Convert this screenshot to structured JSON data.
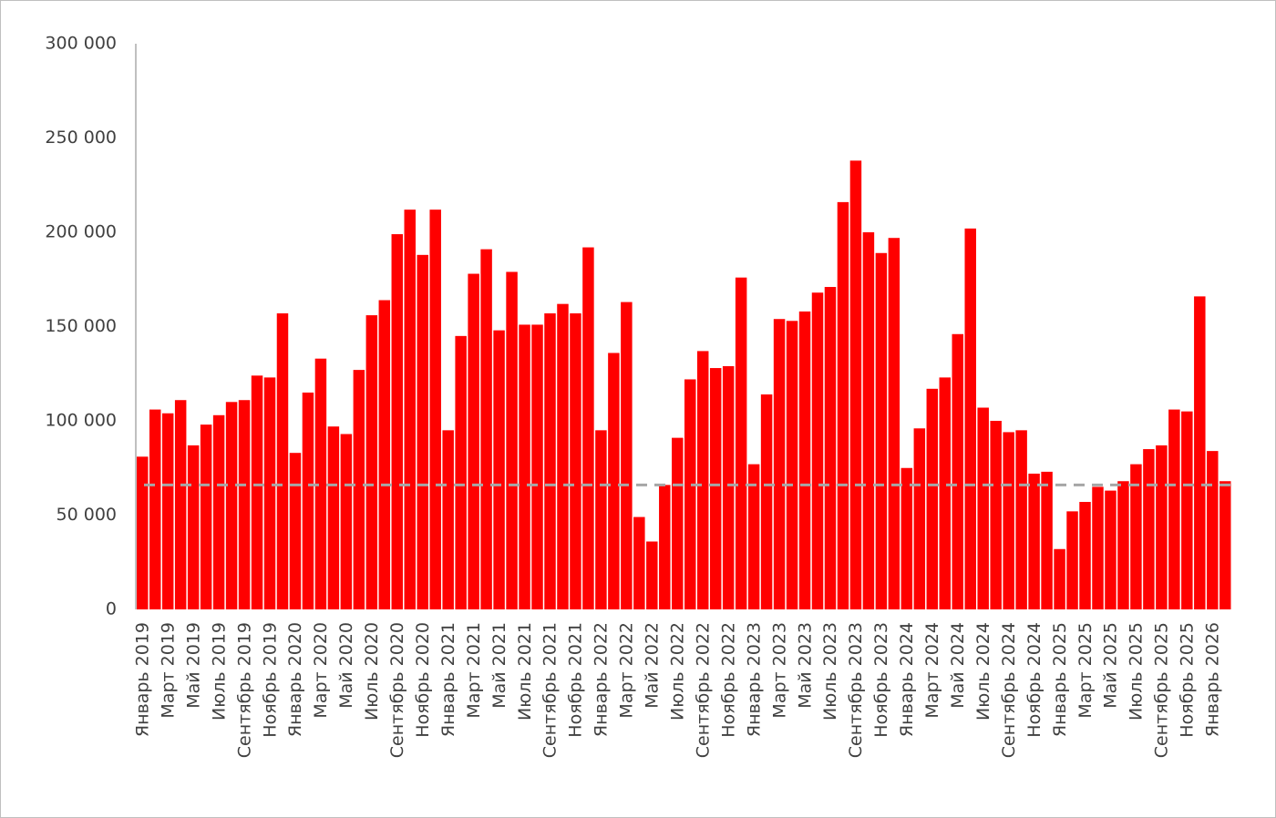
{
  "chart_data": {
    "type": "bar",
    "color": "#ff0000",
    "categories": [
      "Январь 2019",
      null,
      "Март 2019",
      null,
      "Май 2019",
      null,
      "Июль 2019",
      null,
      "Сентябрь 2019",
      null,
      "Ноябрь 2019",
      null,
      "Январь 2020",
      null,
      "Март 2020",
      null,
      "Май 2020",
      null,
      "Июль 2020",
      null,
      "Сентябрь 2020",
      null,
      "Ноябрь 2020",
      null,
      "Январь 2021",
      null,
      "Март 2021",
      null,
      "Май 2021",
      null,
      "Июль 2021",
      null,
      "Сентябрь 2021",
      null,
      "Ноябрь 2021",
      null,
      "Январь 2022",
      null,
      "Март 2022",
      null,
      "Май 2022",
      null,
      "Июль 2022",
      null,
      "Сентябрь 2022",
      null,
      "Ноябрь 2022",
      null,
      "Январь 2023",
      null,
      "Март 2023",
      null,
      "Май 2023",
      null,
      "Июль 2023",
      null,
      "Сентябрь 2023",
      null,
      "Ноябрь 2023",
      null,
      "Январь 2024",
      null,
      "Март 2024",
      null,
      "Май 2024",
      null,
      "Июль 2024",
      null,
      "Сентябрь 2024",
      null,
      "Ноябрь 2024",
      null,
      "Январь 2025",
      null,
      "Март 2025",
      null,
      "Май 2025",
      null,
      "Июль 2025",
      null,
      "Сентябрь 2025",
      null,
      "Ноябрь 2025",
      null,
      "Январь 2026",
      null
    ],
    "values": [
      81000,
      106000,
      104000,
      111000,
      87000,
      98000,
      103000,
      110000,
      111000,
      124000,
      123000,
      157000,
      83000,
      115000,
      133000,
      97000,
      93000,
      127000,
      156000,
      164000,
      199000,
      212000,
      188000,
      212000,
      95000,
      145000,
      178000,
      191000,
      148000,
      179000,
      151000,
      151000,
      157000,
      162000,
      157000,
      192000,
      95000,
      136000,
      163000,
      49000,
      36000,
      66000,
      91000,
      122000,
      137000,
      128000,
      129000,
      176000,
      77000,
      114000,
      154000,
      153000,
      158000,
      168000,
      171000,
      216000,
      238000,
      200000,
      189000,
      197000,
      75000,
      96000,
      117000,
      123000,
      146000,
      202000,
      107000,
      100000,
      94000,
      95000,
      72000,
      73000,
      32000,
      52000,
      57000,
      65000,
      63000,
      68000,
      77000,
      85000,
      87000,
      106000,
      105000,
      166000,
      84000,
      68000
    ],
    "reference_line": {
      "value": 66000,
      "color": "#a6a6a6"
    },
    "ylim": [
      0,
      300000
    ],
    "yticks": [
      0,
      {
        "value": 50000,
        "label": "50 000"
      },
      {
        "value": 100000,
        "label": "100 000"
      },
      {
        "value": 150000,
        "label": "150 000"
      },
      {
        "value": 200000,
        "label": "200 000"
      },
      {
        "value": 250000,
        "label": "250 000"
      },
      {
        "value": 300000,
        "label": "300 000"
      }
    ],
    "grid": false
  }
}
